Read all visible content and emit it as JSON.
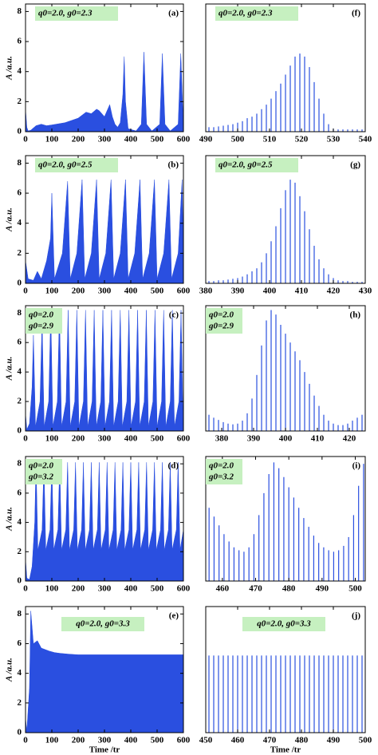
{
  "chart_data": [
    {
      "type": "area",
      "panel_label": "(a)",
      "annotation": [
        "q0=2.0, g0=2.3"
      ],
      "ylabel": "A /a.u.",
      "color": "#2a4fe0",
      "x": [
        0,
        5,
        10,
        20,
        40,
        60,
        80,
        100,
        150,
        200,
        230,
        250,
        270,
        280,
        300,
        320,
        330,
        340,
        350,
        360,
        370,
        375,
        380,
        390,
        420,
        440,
        450,
        460,
        480,
        510,
        520,
        530,
        550,
        580,
        590,
        600
      ],
      "values": [
        1.5,
        0.3,
        0.05,
        0.1,
        0.4,
        0.5,
        0.4,
        0.45,
        0.6,
        0.9,
        1.3,
        1.2,
        1.5,
        1.4,
        1.0,
        1.8,
        1.0,
        0.5,
        0.3,
        0.6,
        2.5,
        5.0,
        2.0,
        0.2,
        0.05,
        0.5,
        5.3,
        0.5,
        0.05,
        0.5,
        5.2,
        0.5,
        0.05,
        0.5,
        5.2,
        0.3
      ],
      "xlim": [
        0,
        600
      ],
      "xticks": [
        0,
        100,
        200,
        300,
        400,
        500,
        600
      ],
      "ylim": [
        0,
        8.5
      ],
      "yticks": [
        0,
        2,
        4,
        6,
        8
      ]
    },
    {
      "type": "area",
      "panel_label": "(b)",
      "annotation": [
        "q0=2.0, g0=2.5"
      ],
      "ylabel": "A /a.u.",
      "color": "#2a4fe0",
      "x": [
        0,
        10,
        30,
        45,
        60,
        80,
        95,
        100,
        110,
        140,
        160,
        170,
        195,
        215,
        225,
        250,
        270,
        280,
        305,
        325,
        335,
        360,
        380,
        390,
        415,
        435,
        445,
        470,
        490,
        500,
        525,
        545,
        555,
        580,
        595,
        600
      ],
      "values": [
        1.5,
        0.3,
        0.2,
        0.8,
        0.3,
        1.5,
        3,
        6,
        0.3,
        2,
        6.8,
        0.3,
        2,
        6.9,
        0.3,
        2,
        6.9,
        0.3,
        2,
        6.9,
        0.3,
        2,
        6.9,
        0.3,
        2,
        6.9,
        0.3,
        2,
        6.9,
        0.3,
        2,
        6.9,
        0.3,
        2,
        6.9,
        2
      ],
      "xlim": [
        0,
        600
      ],
      "xticks": [
        0,
        100,
        200,
        300,
        400,
        500,
        600
      ],
      "ylim": [
        0,
        8.5
      ],
      "yticks": [
        0,
        2,
        4,
        6,
        8
      ]
    },
    {
      "type": "area",
      "panel_label": "(c)",
      "annotation": [
        "q0=2.0",
        "g0=2.9"
      ],
      "ylabel": "A /a.u.",
      "color": "#2a4fe0",
      "x": [
        0,
        5,
        15,
        25,
        30,
        38,
        55,
        63,
        71,
        88,
        96,
        104,
        121,
        129,
        137,
        154,
        162,
        170,
        187,
        195,
        203,
        220,
        228,
        236,
        253,
        261,
        269,
        286,
        294,
        302,
        319,
        327,
        335,
        352,
        360,
        368,
        385,
        393,
        401,
        418,
        426,
        434,
        451,
        459,
        467,
        484,
        492,
        500,
        517,
        525,
        533,
        550,
        558,
        566,
        583,
        591,
        599
      ],
      "values": [
        1.2,
        0.1,
        0.5,
        3,
        6.5,
        0.3,
        2,
        7.5,
        0.3,
        2,
        8.2,
        0.3,
        2,
        8.2,
        0.3,
        2,
        8.2,
        0.3,
        2,
        8.2,
        0.3,
        2,
        8.2,
        0.3,
        2,
        8.2,
        0.3,
        2,
        8.2,
        0.3,
        2,
        8.2,
        0.3,
        2,
        8.2,
        0.3,
        2,
        8.2,
        0.3,
        2,
        8.2,
        0.3,
        2,
        8.2,
        0.3,
        2,
        8.2,
        0.3,
        2,
        8.2,
        0.3,
        2,
        8.2,
        0.3,
        2,
        8.2,
        0.3
      ],
      "xlim": [
        0,
        600
      ],
      "xticks": [
        0,
        100,
        200,
        300,
        400,
        500,
        600
      ],
      "ylim": [
        0,
        8.5
      ],
      "yticks": [
        0,
        2,
        4,
        6,
        8
      ]
    },
    {
      "type": "area",
      "panel_label": "(d)",
      "annotation": [
        "q0=2.0",
        "g0=3.2"
      ],
      "ylabel": "A /a.u.",
      "color": "#2a4fe0",
      "x": [
        0,
        5,
        15,
        25,
        35,
        40,
        47,
        63,
        70,
        77,
        93,
        100,
        107,
        123,
        130,
        137,
        153,
        160,
        167,
        183,
        190,
        197,
        213,
        220,
        227,
        243,
        250,
        257,
        273,
        280,
        287,
        303,
        310,
        317,
        333,
        340,
        347,
        363,
        370,
        377,
        393,
        400,
        407,
        423,
        430,
        437,
        453,
        460,
        467,
        483,
        490,
        497,
        513,
        520,
        527,
        543,
        550,
        557,
        573,
        580,
        587,
        600
      ],
      "values": [
        1.5,
        0.2,
        0.1,
        1,
        4,
        8.2,
        2.1,
        3.5,
        8.1,
        2.1,
        3.5,
        8.1,
        2.1,
        3.5,
        8.1,
        2.1,
        3.5,
        8.1,
        2.1,
        3.5,
        8.1,
        2.1,
        3.5,
        8.1,
        2.1,
        3.5,
        8.1,
        2.1,
        3.5,
        8.1,
        2.1,
        3.5,
        8.1,
        2.1,
        3.5,
        8.1,
        2.1,
        3.5,
        8.1,
        2.1,
        3.5,
        8.1,
        2.1,
        3.5,
        8.1,
        2.1,
        3.5,
        8.1,
        2.1,
        3.5,
        8.1,
        2.1,
        3.5,
        8.1,
        2.1,
        3.5,
        8.1,
        2.1,
        3.5,
        8.1,
        2.1,
        3.5
      ],
      "xlim": [
        0,
        600
      ],
      "xticks": [
        0,
        100,
        200,
        300,
        400,
        500,
        600
      ],
      "ylim": [
        0,
        8.5
      ],
      "yticks": [
        0,
        2,
        4,
        6,
        8
      ]
    },
    {
      "type": "area",
      "panel_label": "(e)",
      "annotation": [
        "q0=2.0, g0=3.3"
      ],
      "ylabel": "A /a.u.",
      "xlabel": "Time /tr",
      "color": "#2a4fe0",
      "x": [
        0,
        5,
        15,
        20,
        30,
        45,
        60,
        75,
        90,
        110,
        130,
        160,
        200,
        600
      ],
      "values": [
        1,
        0.1,
        3,
        8.2,
        6,
        6.2,
        5.7,
        5.6,
        5.5,
        5.4,
        5.35,
        5.3,
        5.25,
        5.25
      ],
      "xlim": [
        0,
        600
      ],
      "xticks": [
        0,
        100,
        200,
        300,
        400,
        500,
        600
      ],
      "ylim": [
        0,
        8.5
      ],
      "yticks": [
        0,
        2,
        4,
        6,
        8
      ]
    },
    {
      "type": "stem",
      "panel_label": "(f)",
      "annotation": [
        "q0=2.0, g0=2.3"
      ],
      "color": "#2a4fe0",
      "x": [
        491,
        492.5,
        494,
        495.5,
        497,
        498.5,
        500,
        501.5,
        503,
        504.5,
        506,
        507.5,
        509,
        510.5,
        512,
        513.5,
        515,
        516.5,
        518,
        519.5,
        521,
        522.5,
        524,
        525.5,
        527,
        528.5,
        530,
        531.5,
        533,
        534.5,
        536,
        537.5,
        539
      ],
      "values": [
        0.3,
        0.3,
        0.35,
        0.4,
        0.45,
        0.5,
        0.6,
        0.7,
        0.9,
        1.0,
        1.2,
        1.5,
        1.8,
        2.2,
        2.7,
        3.2,
        3.8,
        4.4,
        5.0,
        5.2,
        5.0,
        4.3,
        3.3,
        2.2,
        1.2,
        0.5,
        0.2,
        0.15,
        0.15,
        0.15,
        0.15,
        0.15,
        0.15
      ],
      "xlim": [
        490,
        540
      ],
      "xticks": [
        490,
        500,
        510,
        520,
        530,
        540
      ],
      "ylim": [
        0,
        8.5
      ]
    },
    {
      "type": "stem",
      "panel_label": "(g)",
      "annotation": [
        "q0=2.0, g0=2.5"
      ],
      "color": "#2a4fe0",
      "x": [
        381,
        382.5,
        384,
        385.5,
        387,
        388.5,
        390,
        391.5,
        393,
        394.5,
        396,
        397.5,
        399,
        400.5,
        402,
        403.5,
        405,
        406.5,
        408,
        409.5,
        411,
        412.5,
        414,
        415.5,
        417,
        418.5,
        420,
        421.5,
        423,
        424.5,
        426,
        427.5,
        429
      ],
      "values": [
        0.15,
        0.15,
        0.2,
        0.2,
        0.25,
        0.3,
        0.35,
        0.45,
        0.6,
        0.8,
        1.0,
        1.4,
        2.0,
        2.8,
        3.8,
        5.0,
        6.2,
        6.9,
        6.7,
        5.8,
        4.8,
        3.6,
        2.5,
        1.6,
        1.0,
        0.6,
        0.35,
        0.2,
        0.15,
        0.15,
        0.1,
        0.1,
        0.1
      ],
      "xlim": [
        380,
        430
      ],
      "xticks": [
        380,
        390,
        400,
        410,
        420,
        430
      ],
      "ylim": [
        0,
        8.5
      ]
    },
    {
      "type": "stem",
      "panel_label": "(h)",
      "annotation": [
        "q0=2.0",
        "g0=2.9"
      ],
      "color": "#2a4fe0",
      "x": [
        376,
        377.5,
        379,
        380.5,
        382,
        383.5,
        385,
        386.5,
        388,
        389.5,
        391,
        392.5,
        394,
        395.5,
        397,
        398.5,
        400,
        401.5,
        403,
        404.5,
        406,
        407.5,
        409,
        410.5,
        412,
        413.5,
        415,
        416.5,
        418,
        419.5,
        421,
        422.5,
        424
      ],
      "values": [
        1.1,
        0.9,
        0.75,
        0.6,
        0.5,
        0.45,
        0.5,
        0.7,
        1.2,
        2.2,
        3.8,
        5.8,
        7.5,
        8.2,
        7.9,
        7.2,
        6.6,
        6.0,
        5.4,
        4.8,
        4.0,
        3.2,
        2.4,
        1.7,
        1.1,
        0.7,
        0.5,
        0.4,
        0.4,
        0.5,
        0.7,
        0.9,
        1.1
      ],
      "xlim": [
        375,
        425
      ],
      "xticks": [
        380,
        390,
        400,
        410,
        420
      ],
      "ylim": [
        0,
        8.5
      ]
    },
    {
      "type": "stem",
      "panel_label": "(i)",
      "annotation": [
        "q0=2.0",
        "g0=3.2"
      ],
      "color": "#2a4fe0",
      "x": [
        456,
        457.5,
        459,
        460.5,
        462,
        463.5,
        465,
        466.5,
        468,
        469.5,
        471,
        472.5,
        474,
        475.5,
        477,
        478.5,
        480,
        481.5,
        483,
        484.5,
        486,
        487.5,
        489,
        490.5,
        492,
        493.5,
        495,
        496.5,
        498,
        499.5,
        501,
        502.5
      ],
      "values": [
        5.0,
        4.4,
        3.8,
        3.2,
        2.7,
        2.3,
        2.1,
        2.0,
        2.3,
        3.2,
        4.5,
        6.0,
        7.3,
        8.1,
        7.7,
        7.1,
        6.4,
        5.7,
        5.0,
        4.3,
        3.7,
        3.1,
        2.6,
        2.3,
        2.1,
        2.0,
        2.1,
        2.4,
        3.0,
        4.5,
        6.5,
        8.0
      ],
      "xlim": [
        455,
        503
      ],
      "xticks": [
        460,
        470,
        480,
        490,
        500
      ],
      "ylim": [
        0,
        8.5
      ]
    },
    {
      "type": "stem",
      "panel_label": "(j)",
      "annotation": [
        "q0=2.0, g0=3.3"
      ],
      "xlabel": "Time /tr",
      "color": "#2a4fe0",
      "x": [
        451,
        452.5,
        454,
        455.5,
        457,
        458.5,
        460,
        461.5,
        463,
        464.5,
        466,
        467.5,
        469,
        470.5,
        472,
        473.5,
        475,
        476.5,
        478,
        479.5,
        481,
        482.5,
        484,
        485.5,
        487,
        488.5,
        490,
        491.5,
        493,
        494.5,
        496,
        497.5,
        499
      ],
      "values": [
        5.2,
        5.2,
        5.2,
        5.2,
        5.2,
        5.2,
        5.2,
        5.2,
        5.2,
        5.2,
        5.2,
        5.2,
        5.2,
        5.2,
        5.2,
        5.2,
        5.2,
        5.2,
        5.2,
        5.2,
        5.2,
        5.2,
        5.2,
        5.2,
        5.2,
        5.2,
        5.2,
        5.2,
        5.2,
        5.2,
        5.2,
        5.2,
        5.2
      ],
      "xlim": [
        450,
        500
      ],
      "xticks": [
        450,
        460,
        470,
        480,
        490,
        500
      ],
      "ylim": [
        0,
        8.5
      ]
    }
  ]
}
